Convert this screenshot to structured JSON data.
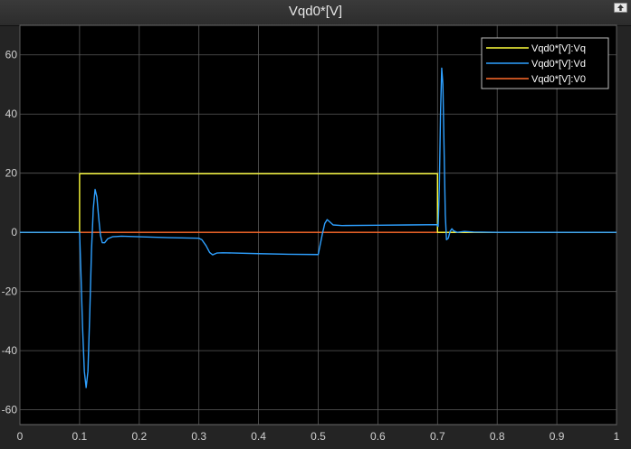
{
  "window": {
    "title": "Vqd0*[V]",
    "restore_icon": "restore-arrow-icon"
  },
  "colors": {
    "background": "#000000",
    "grid": "#5a5a5a",
    "vq": "#ffff3c",
    "vd": "#2ea0ff",
    "v0": "#ff6a2a"
  },
  "chart_data": {
    "type": "line",
    "title": "Vqd0*[V]",
    "xlim": [
      0,
      1
    ],
    "ylim": [
      -65,
      70
    ],
    "xticks": [
      0,
      0.1,
      0.2,
      0.3,
      0.4,
      0.5,
      0.6,
      0.7,
      0.8,
      0.9,
      1
    ],
    "xtick_labels": [
      "0",
      "0.1",
      "0.2",
      "0.3",
      "0.4",
      "0.5",
      "0.6",
      "0.7",
      "0.8",
      "0.9",
      "1"
    ],
    "yticks": [
      -60,
      -40,
      -20,
      0,
      20,
      40,
      60
    ],
    "ytick_labels": [
      "-60",
      "-40",
      "-20",
      "0",
      "20",
      "40",
      "60"
    ],
    "grid": true,
    "legend_position": "top-right",
    "series": [
      {
        "name": "Vqd0*[V]:Vq",
        "color": "#ffff3c",
        "points": [
          [
            0,
            0
          ],
          [
            0.1,
            0
          ],
          [
            0.1,
            19.8
          ],
          [
            0.7,
            19.8
          ],
          [
            0.7,
            0
          ],
          [
            1,
            0
          ]
        ]
      },
      {
        "name": "Vqd0*[V]:Vd",
        "color": "#2ea0ff",
        "points": [
          [
            0,
            0
          ],
          [
            0.1,
            0
          ],
          [
            0.102,
            -12
          ],
          [
            0.105,
            -32
          ],
          [
            0.108,
            -47
          ],
          [
            0.111,
            -52.5
          ],
          [
            0.114,
            -47
          ],
          [
            0.117,
            -28
          ],
          [
            0.12,
            -6
          ],
          [
            0.123,
            8
          ],
          [
            0.126,
            14.5
          ],
          [
            0.129,
            12
          ],
          [
            0.132,
            5
          ],
          [
            0.135,
            -1
          ],
          [
            0.138,
            -3.5
          ],
          [
            0.142,
            -3.5
          ],
          [
            0.147,
            -2.2
          ],
          [
            0.155,
            -1.5
          ],
          [
            0.17,
            -1.3
          ],
          [
            0.2,
            -1.5
          ],
          [
            0.25,
            -1.8
          ],
          [
            0.3,
            -2.0
          ],
          [
            0.305,
            -2.5
          ],
          [
            0.312,
            -4.5
          ],
          [
            0.318,
            -6.8
          ],
          [
            0.323,
            -7.6
          ],
          [
            0.33,
            -7.0
          ],
          [
            0.34,
            -6.9
          ],
          [
            0.4,
            -7.2
          ],
          [
            0.45,
            -7.4
          ],
          [
            0.5,
            -7.5
          ],
          [
            0.503,
            -4.5
          ],
          [
            0.507,
            -0.5
          ],
          [
            0.511,
            3.0
          ],
          [
            0.515,
            4.3
          ],
          [
            0.519,
            3.6
          ],
          [
            0.525,
            2.5
          ],
          [
            0.54,
            2.3
          ],
          [
            0.6,
            2.4
          ],
          [
            0.65,
            2.5
          ],
          [
            0.699,
            2.6
          ],
          [
            0.701,
            2.0
          ],
          [
            0.703,
            15
          ],
          [
            0.705,
            40
          ],
          [
            0.707,
            55.5
          ],
          [
            0.709,
            50
          ],
          [
            0.711,
            28
          ],
          [
            0.713,
            6
          ],
          [
            0.715,
            -2.5
          ],
          [
            0.718,
            -2
          ],
          [
            0.721,
            0.3
          ],
          [
            0.724,
            1.2
          ],
          [
            0.727,
            0.5
          ],
          [
            0.733,
            0
          ],
          [
            0.745,
            0.3
          ],
          [
            0.76,
            0.1
          ],
          [
            0.8,
            0
          ],
          [
            1,
            0
          ]
        ]
      },
      {
        "name": "Vqd0*[V]:V0",
        "color": "#ff6a2a",
        "points": [
          [
            0,
            0
          ],
          [
            1,
            0
          ]
        ]
      }
    ]
  }
}
